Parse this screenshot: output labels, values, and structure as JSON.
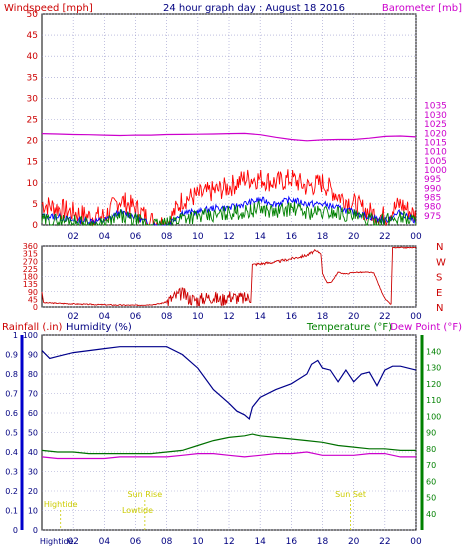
{
  "chart_data": [
    {
      "type": "line",
      "title": "24 hour graph day : August 18 2016",
      "left_label": "Windspeed [mph]",
      "right_label": "Barometer [mb]",
      "x_ticks": [
        "02",
        "04",
        "06",
        "08",
        "10",
        "12",
        "14",
        "16",
        "18",
        "20",
        "22",
        "00"
      ],
      "ylim_left": [
        0,
        50
      ],
      "yticks_left": [
        "0",
        "5",
        "10",
        "15",
        "20",
        "25",
        "30",
        "35",
        "40",
        "45",
        "50"
      ],
      "ylim_right": [
        970,
        1085
      ],
      "yticks_right": [
        "975",
        "980",
        "985",
        "990",
        "995",
        "1000",
        "1005",
        "1010",
        "1015",
        "1020",
        "1025",
        "1030",
        "1035"
      ],
      "grid": true,
      "colors": {
        "gust": "#ff0000",
        "average": "#0000ff",
        "speed": "#008000",
        "barometer": "#cc00cc"
      },
      "series": [
        {
          "key": "gust",
          "x": [
            0,
            1,
            2,
            3,
            4,
            5,
            6,
            7,
            8,
            9,
            10,
            11,
            12,
            13,
            14,
            15,
            16,
            17,
            18,
            19,
            20,
            21,
            22,
            23,
            24
          ],
          "values": [
            5,
            4,
            3,
            2,
            2,
            6,
            4,
            1,
            0,
            6,
            7,
            8,
            9,
            11,
            11,
            10,
            11,
            9,
            10,
            7,
            5,
            3,
            2,
            5,
            2
          ]
        },
        {
          "key": "average",
          "x": [
            0,
            1,
            2,
            3,
            4,
            5,
            6,
            7,
            8,
            9,
            10,
            11,
            12,
            13,
            14,
            15,
            16,
            17,
            18,
            19,
            20,
            21,
            22,
            23,
            24
          ],
          "values": [
            2,
            2,
            1,
            1,
            1,
            3,
            2,
            0,
            0,
            3,
            3,
            4,
            4,
            5,
            6,
            5,
            6,
            5,
            5,
            4,
            3,
            2,
            1,
            3,
            1
          ]
        },
        {
          "key": "speed",
          "x": [
            0,
            1,
            2,
            3,
            4,
            5,
            6,
            7,
            8,
            9,
            10,
            11,
            12,
            13,
            14,
            15,
            16,
            17,
            18,
            19,
            20,
            21,
            22,
            23,
            24
          ],
          "values": [
            1,
            1,
            1,
            0,
            0,
            2,
            1,
            0,
            0,
            2,
            2,
            2,
            3,
            3,
            4,
            3,
            4,
            3,
            3,
            3,
            2,
            1,
            1,
            2,
            1
          ]
        },
        {
          "key": "barometer",
          "x": [
            0,
            1,
            2,
            3,
            4,
            5,
            6,
            7,
            8,
            9,
            10,
            11,
            12,
            13,
            14,
            15,
            16,
            17,
            18,
            19,
            20,
            21,
            22,
            23,
            24
          ],
          "values": [
            1019.8,
            1019.6,
            1019.3,
            1019.2,
            1019.0,
            1018.8,
            1019.0,
            1019.0,
            1019.3,
            1019.4,
            1019.5,
            1019.6,
            1019.8,
            1019.9,
            1019.2,
            1017.8,
            1016.6,
            1015.9,
            1016.4,
            1016.6,
            1016.6,
            1017.3,
            1018.3,
            1018.5,
            1018.0
          ]
        }
      ]
    },
    {
      "type": "line",
      "x_ticks": [
        "02",
        "04",
        "06",
        "08",
        "10",
        "12",
        "14",
        "16",
        "18",
        "20",
        "22",
        "00"
      ],
      "ylim": [
        0,
        360
      ],
      "yticks_left": [
        "0",
        "45",
        "90",
        "135",
        "180",
        "225",
        "270",
        "315",
        "360"
      ],
      "compass_labels": [
        "N",
        "W",
        "S",
        "E",
        "N"
      ],
      "colors": {
        "direction": "#cc0000"
      },
      "series": [
        {
          "key": "direction",
          "x": [
            0,
            0.1,
            1.5,
            3,
            4.5,
            6,
            6.5,
            7.2,
            7.6,
            8,
            8.5,
            9,
            9.5,
            10,
            10.5,
            11,
            11.5,
            12,
            12.5,
            13,
            13.4,
            13.5,
            14,
            15,
            16,
            17,
            17.5,
            17.9,
            18,
            18.3,
            18.6,
            19,
            19.5,
            20,
            21,
            21.3,
            21.7,
            22,
            22.2,
            22.4,
            22.5,
            23,
            24
          ],
          "values": [
            90,
            25,
            20,
            15,
            12,
            10,
            12,
            15,
            20,
            30,
            60,
            80,
            50,
            40,
            55,
            60,
            40,
            65,
            55,
            50,
            60,
            250,
            255,
            265,
            285,
            305,
            330,
            320,
            200,
            140,
            150,
            205,
            195,
            205,
            205,
            200,
            110,
            50,
            30,
            15,
            350,
            350,
            350
          ]
        }
      ]
    },
    {
      "type": "line",
      "left_label": "Rainfall (.in)",
      "left_label2": "Humidity (%)",
      "right_label": "Temperature (°F)",
      "right_label2": "Dew Point (°F)",
      "x_ticks": [
        "02",
        "04",
        "06",
        "08",
        "10",
        "12",
        "14",
        "16",
        "18",
        "20",
        "22",
        "00"
      ],
      "ylim_left": [
        0,
        1.0
      ],
      "yticks_left": [
        "0",
        "0.1",
        "0.2",
        "0.3",
        "0.4",
        "0.5",
        "0.6",
        "0.7",
        "0.8",
        "0.9",
        "1"
      ],
      "yticks_humidity": [
        "0",
        "10",
        "20",
        "30",
        "40",
        "50",
        "60",
        "70",
        "80",
        "90",
        "100"
      ],
      "ylim_right": [
        30,
        150
      ],
      "yticks_right": [
        "40",
        "50",
        "60",
        "70",
        "80",
        "90",
        "100",
        "110",
        "120",
        "130",
        "140"
      ],
      "colors": {
        "humidity": "#00008b",
        "temperature": "#007000",
        "dewpoint": "#cc00cc",
        "rain_axis": "#0000cc",
        "sun": "#cccc00"
      },
      "series": [
        {
          "key": "humidity",
          "x": [
            0,
            0.5,
            1,
            2,
            3,
            4,
            5,
            6,
            7,
            8,
            9,
            10,
            11,
            12,
            12.5,
            13,
            13.3,
            13.5,
            14,
            15,
            16,
            17,
            17.3,
            17.7,
            18,
            18.5,
            19,
            19.5,
            20,
            20.5,
            21,
            21.5,
            22,
            22.5,
            23,
            24
          ],
          "values": [
            92,
            88,
            89,
            91,
            92,
            93,
            94,
            94,
            94,
            94,
            90,
            83,
            72,
            65,
            61,
            59,
            57,
            63,
            68,
            72,
            75,
            80,
            85,
            87,
            83,
            82,
            76,
            82,
            76,
            80,
            81,
            74,
            82,
            84,
            84,
            82
          ]
        },
        {
          "key": "temperature",
          "x": [
            0,
            1,
            2,
            3,
            4,
            5,
            6,
            7,
            8,
            9,
            10,
            11,
            12,
            13,
            13.5,
            14,
            15,
            16,
            17,
            18,
            19,
            20,
            21,
            22,
            23,
            24
          ],
          "values": [
            79,
            78,
            78,
            77,
            77,
            77,
            77,
            77,
            78,
            79,
            82,
            85,
            87,
            88,
            89,
            88,
            87,
            86,
            85,
            84,
            82,
            81,
            80,
            80,
            79,
            79
          ]
        },
        {
          "key": "dewpoint",
          "x": [
            0,
            1,
            2,
            3,
            4,
            5,
            6,
            7,
            8,
            9,
            10,
            11,
            12,
            13,
            14,
            15,
            16,
            17,
            18,
            19,
            20,
            21,
            22,
            23,
            24
          ],
          "values": [
            75,
            74,
            74,
            74,
            74,
            75,
            75,
            75,
            75,
            76,
            77,
            77,
            76,
            75,
            76,
            77,
            77,
            78,
            76,
            76,
            76,
            77,
            77,
            75,
            75
          ]
        }
      ],
      "annotations": [
        {
          "label": "Sun Rise",
          "x": 6.6
        },
        {
          "label": "Sun Set",
          "x": 19.8
        },
        {
          "label": "Lowtide",
          "x": 6.0
        },
        {
          "label": "Hightide",
          "x": 1.2
        },
        {
          "label": "Hightide",
          "x": 1.2
        },
        {
          "label": "00",
          "x": 1.2
        }
      ]
    }
  ]
}
